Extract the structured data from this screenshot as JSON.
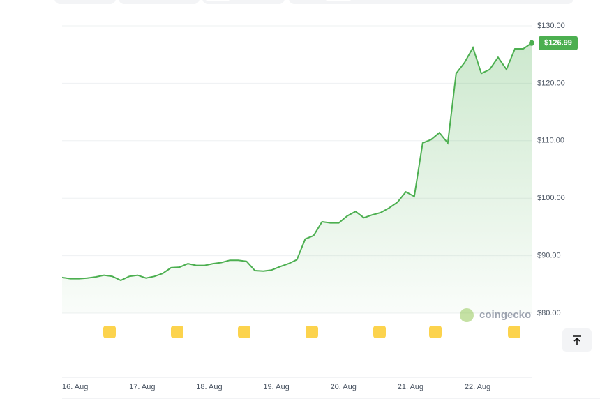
{
  "chart_data": {
    "type": "line",
    "categories": [
      "16. Aug",
      null,
      null,
      null,
      null,
      null,
      null,
      null,
      "17. Aug",
      null,
      null,
      null,
      null,
      null,
      null,
      null,
      "18. Aug",
      null,
      null,
      null,
      null,
      null,
      null,
      null,
      "19. Aug",
      null,
      null,
      null,
      null,
      null,
      null,
      null,
      "20. Aug",
      null,
      null,
      null,
      null,
      null,
      null,
      null,
      "21. Aug",
      null,
      null,
      null,
      null,
      null,
      null,
      null,
      "22. Aug",
      null,
      null,
      null,
      null,
      null,
      null,
      null,
      null
    ],
    "series": [
      {
        "color": "#4caf50",
        "values": [
          86.2,
          86.0,
          86.0,
          86.1,
          86.3,
          86.6,
          86.4,
          85.7,
          86.4,
          86.6,
          86.1,
          86.4,
          86.9,
          87.9,
          88.0,
          88.6,
          88.3,
          88.3,
          88.6,
          88.8,
          89.2,
          89.2,
          89.0,
          87.4,
          87.3,
          87.5,
          88.1,
          88.6,
          89.3,
          92.9,
          93.5,
          95.9,
          95.7,
          95.7,
          96.9,
          97.7,
          96.6,
          97.1,
          97.5,
          98.3,
          99.3,
          101.1,
          100.3,
          109.6,
          110.2,
          111.4,
          109.6,
          121.7,
          123.6,
          126.2,
          121.7,
          122.4,
          124.5,
          122.4,
          126.0,
          126.0,
          126.99
        ]
      }
    ],
    "last_price_label": "$126.99",
    "ylim": [
      80,
      130
    ],
    "yticks": [
      {
        "value": 80,
        "label": "$80.00"
      },
      {
        "value": 90,
        "label": "$90.00"
      },
      {
        "value": 100,
        "label": "$100.00"
      },
      {
        "value": 110,
        "label": "$110.00"
      },
      {
        "value": 120,
        "label": "$120.00"
      },
      {
        "value": 130,
        "label": "$130.00"
      }
    ],
    "grid": true,
    "watermark": "coingecko"
  }
}
